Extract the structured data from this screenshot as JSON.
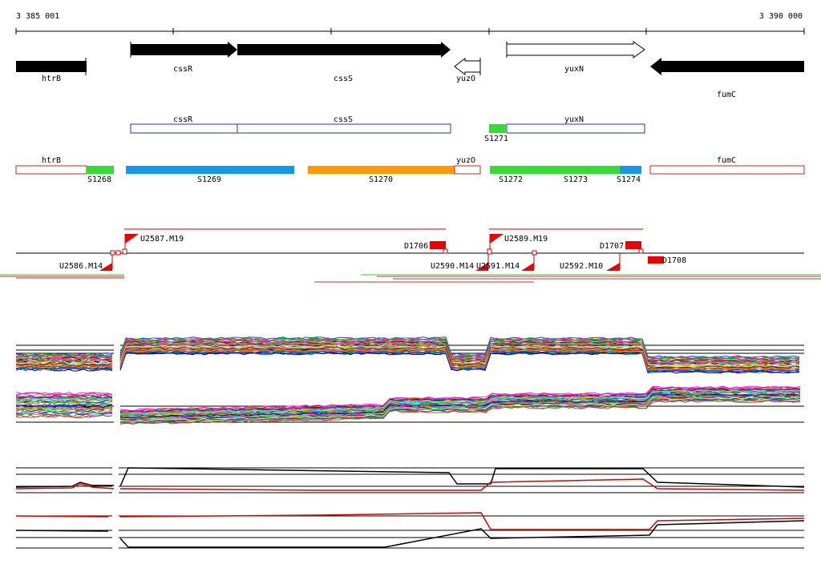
{
  "coord_start": "3 385 001",
  "coord_end": "3 390 000",
  "genes": [
    {
      "label": "htrB",
      "strand": "-",
      "color": "black"
    },
    {
      "label": "cssR",
      "strand": "+",
      "color": "black"
    },
    {
      "label": "cssS",
      "strand": "+",
      "color": "black"
    },
    {
      "label": "yuzO",
      "strand": "-",
      "color": "white"
    },
    {
      "label": "yuxN",
      "strand": "+",
      "color": "white"
    },
    {
      "label": "fumC",
      "strand": "-",
      "color": "black"
    }
  ],
  "operons": [
    {
      "label": "cssR"
    },
    {
      "label": "cssS"
    },
    {
      "label": "yuxN"
    },
    {
      "label": "S1271"
    }
  ],
  "segments": [
    {
      "label": "htrB",
      "color": "#ffffff"
    },
    {
      "label": "S1268",
      "color": "#33dd33"
    },
    {
      "label": "S1269",
      "color": "#1199ee"
    },
    {
      "label": "S1270",
      "color": "#ff9900"
    },
    {
      "label": "yuzO",
      "color": "#ffffff"
    },
    {
      "label": "S1272",
      "color": "#33dd33"
    },
    {
      "label": "S1273",
      "color": "#33dd33"
    },
    {
      "label": "S1274",
      "color": "#1199ee"
    },
    {
      "label": "fumC",
      "color": "#ffffff"
    }
  ],
  "sites": [
    {
      "label": "U2587.M19"
    },
    {
      "label": "U2586.M14"
    },
    {
      "label": "D1706"
    },
    {
      "label": "U2590.M14"
    },
    {
      "label": "U2591.M14"
    },
    {
      "label": "U2589.M19"
    },
    {
      "label": "D1707"
    },
    {
      "label": "U2592.M10"
    },
    {
      "label": "D1708"
    }
  ]
}
